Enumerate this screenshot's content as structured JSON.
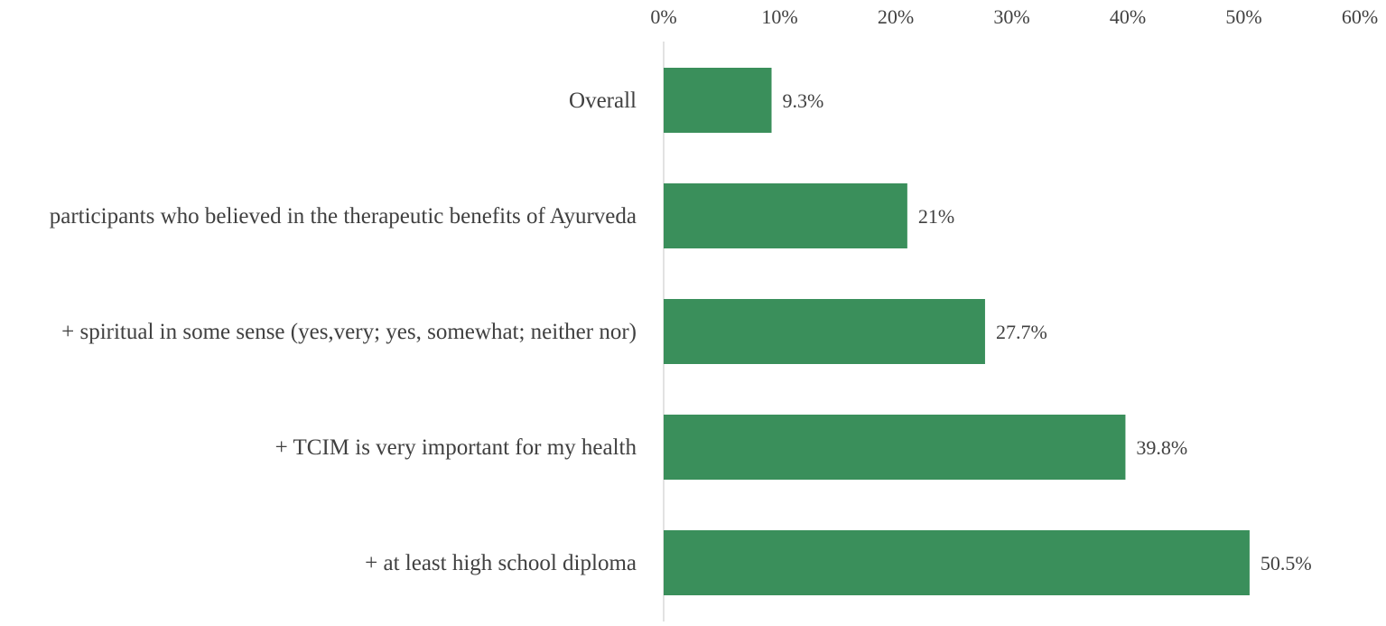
{
  "chart_data": {
    "type": "bar",
    "orientation": "horizontal",
    "title": "",
    "xlabel": "",
    "ylabel": "",
    "x_axis_position": "top",
    "xlim": [
      0,
      60
    ],
    "x_ticks": [
      0,
      10,
      20,
      30,
      40,
      50,
      60
    ],
    "x_tick_labels": [
      "0%",
      "10%",
      "20%",
      "30%",
      "40%",
      "50%",
      "60%"
    ],
    "grid": false,
    "legend": "none",
    "bar_color": "#3a8f5b",
    "categories": [
      "Overall",
      "participants who believed in the therapeutic benefits of Ayurveda",
      "+ spiritual in some sense (yes,very; yes, somewhat; neither nor)",
      "+ TCIM is very important for my health",
      "+ at least high school diploma"
    ],
    "values": [
      9.3,
      21,
      27.7,
      39.8,
      50.5
    ],
    "data_labels": [
      "9.3%",
      "21%",
      "27.7%",
      "39.8%",
      "50.5%"
    ]
  }
}
